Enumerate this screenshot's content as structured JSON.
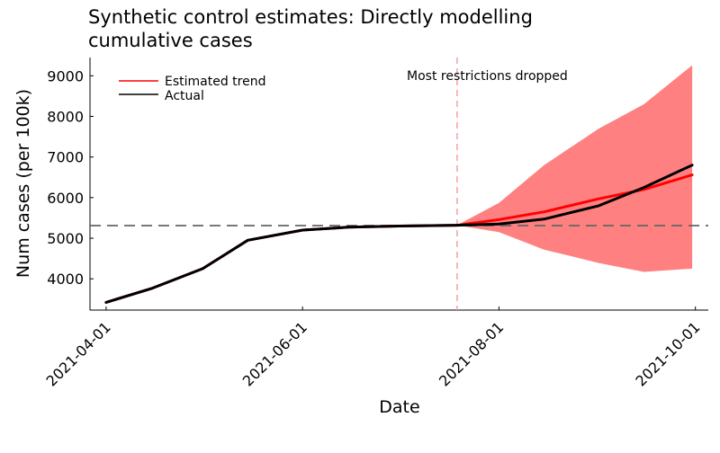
{
  "chart_data": {
    "type": "line",
    "title": "Synthetic control estimates: Directly modelling\ncumulative cases",
    "title_lines": [
      "Synthetic control estimates: Directly modelling",
      "cumulative cases"
    ],
    "xlabel": "Date",
    "ylabel": "Num cases (per 100k)",
    "x_ticks": [
      "2021-04-01",
      "2021-06-01",
      "2021-08-01",
      "2021-10-01"
    ],
    "y_ticks": [
      4000,
      5000,
      6000,
      7000,
      8000,
      9000
    ],
    "xlim": [
      "2021-03-27",
      "2021-10-05"
    ],
    "ylim": [
      3230,
      9450
    ],
    "grid": false,
    "legend_position": "top-left",
    "reference_line_y": 5310,
    "event": {
      "date": "2021-07-19",
      "label": "Most restrictions dropped"
    },
    "colors": {
      "band": "#ff8080",
      "trend": "#ff0000",
      "actual": "#000000",
      "event_line": "#f4a0a0",
      "ref_line": "#666666"
    },
    "series": [
      {
        "name": "Estimated trend",
        "color": "#ff0000",
        "x": [
          "2021-04-01",
          "2021-04-15",
          "2021-05-01",
          "2021-05-15",
          "2021-06-01",
          "2021-06-15",
          "2021-07-01",
          "2021-07-19",
          "2021-08-01",
          "2021-08-15",
          "2021-09-01",
          "2021-09-15",
          "2021-09-30"
        ],
        "values": [
          3420,
          3760,
          4250,
          4950,
          5200,
          5270,
          5300,
          5320,
          5460,
          5650,
          5970,
          6200,
          6560
        ]
      },
      {
        "name": "Actual",
        "color": "#000000",
        "x": [
          "2021-04-01",
          "2021-04-15",
          "2021-05-01",
          "2021-05-15",
          "2021-06-01",
          "2021-06-15",
          "2021-07-01",
          "2021-07-19",
          "2021-08-01",
          "2021-08-15",
          "2021-09-01",
          "2021-09-15",
          "2021-09-30"
        ],
        "values": [
          3420,
          3760,
          4250,
          4950,
          5200,
          5270,
          5300,
          5320,
          5350,
          5470,
          5800,
          6250,
          6800
        ]
      }
    ],
    "band": {
      "x": [
        "2021-07-19",
        "2021-08-01",
        "2021-08-15",
        "2021-09-01",
        "2021-09-15",
        "2021-09-30"
      ],
      "upper": [
        5320,
        5870,
        6800,
        7700,
        8300,
        9260
      ],
      "lower": [
        5320,
        5150,
        4720,
        4390,
        4170,
        4250
      ]
    }
  }
}
